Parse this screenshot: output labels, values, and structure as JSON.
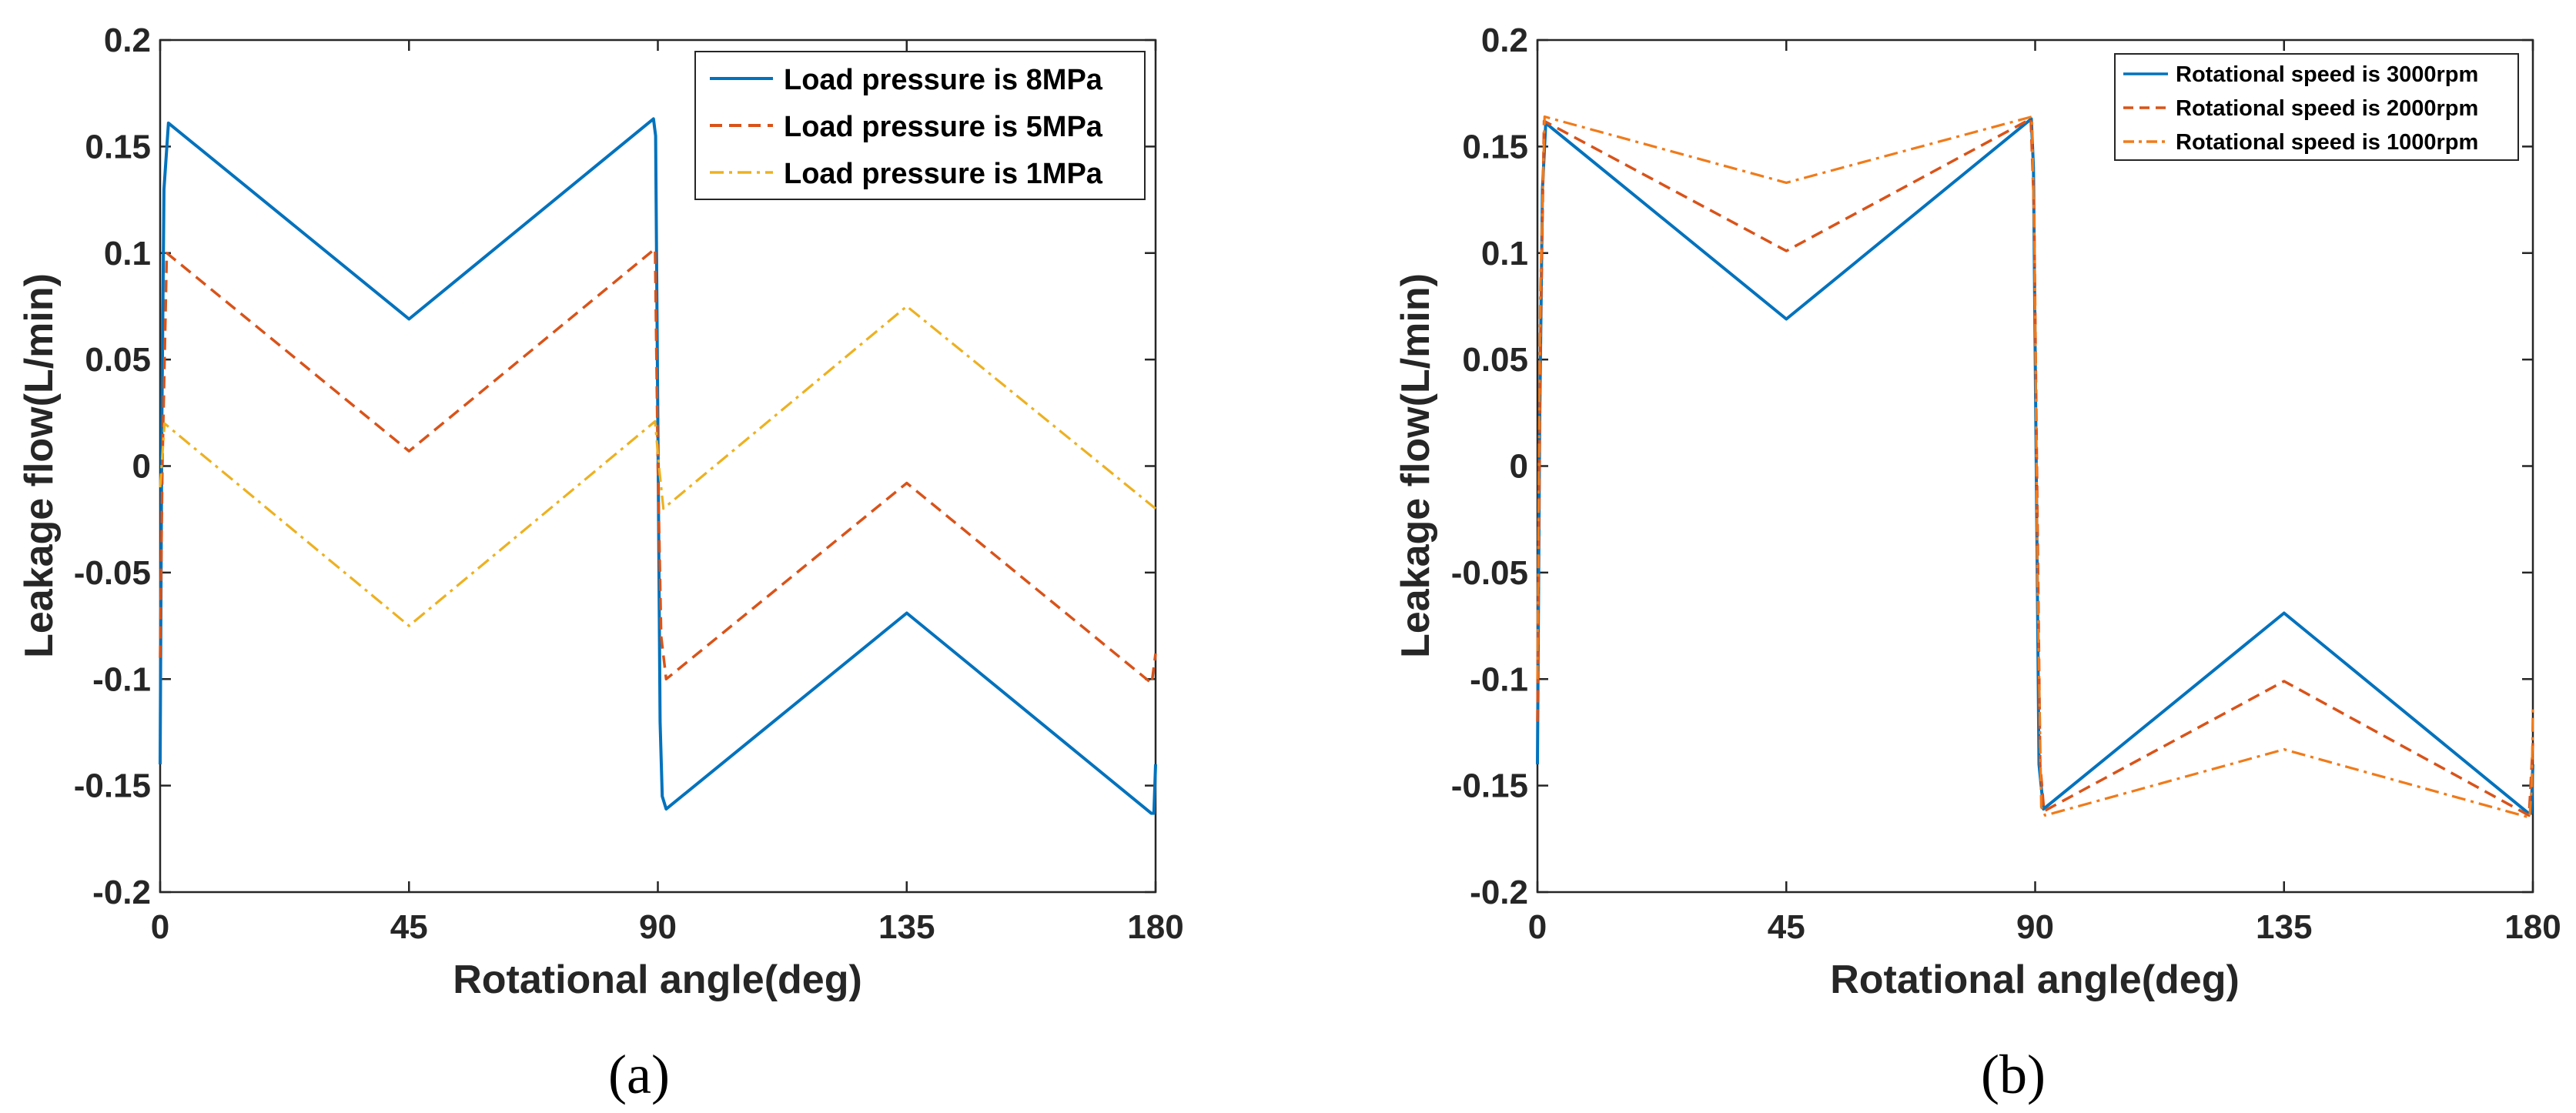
{
  "chart_data": [
    {
      "type": "line",
      "panel_label": "(a)",
      "xlabel": "Rotational angle(deg)",
      "ylabel": "Leakage flow(L/min)",
      "xlim": [
        0,
        180
      ],
      "ylim": [
        -0.2,
        0.2
      ],
      "xticks": [
        0,
        45,
        90,
        135,
        180
      ],
      "yticks": [
        0.2,
        0.15,
        0.1,
        0.05,
        0,
        -0.05,
        -0.1,
        -0.15,
        -0.2
      ],
      "ytick_labels": [
        "0.2",
        "0.15",
        "0.1",
        "0.05",
        "0",
        "-0.05",
        "-0.1",
        "-0.15",
        "-0.2"
      ],
      "legend_position": "top-right",
      "series": [
        {
          "name": "Load pressure is 8MPa",
          "color": "#0072BD",
          "dash": "solid",
          "points": [
            [
              0,
              -0.14
            ],
            [
              0.3,
              0.02
            ],
            [
              0.7,
              0.13
            ],
            [
              1.5,
              0.161
            ],
            [
              45,
              0.069
            ],
            [
              89.2,
              0.163
            ],
            [
              89.6,
              0.155
            ],
            [
              90,
              0.02
            ],
            [
              90.4,
              -0.12
            ],
            [
              90.8,
              -0.155
            ],
            [
              91.5,
              -0.161
            ],
            [
              135,
              -0.069
            ],
            [
              179.2,
              -0.163
            ],
            [
              179.7,
              -0.163
            ],
            [
              180,
              -0.14
            ]
          ]
        },
        {
          "name": "Load pressure is 5MPa",
          "color": "#D95319",
          "dash": "dashed",
          "points": [
            [
              0,
              -0.09
            ],
            [
              0.4,
              0.0
            ],
            [
              1.2,
              0.1
            ],
            [
              45,
              0.007
            ],
            [
              89.5,
              0.102
            ],
            [
              90,
              0.0
            ],
            [
              90.6,
              -0.08
            ],
            [
              91.5,
              -0.1
            ],
            [
              135,
              -0.008
            ],
            [
              179.3,
              -0.102
            ],
            [
              180,
              -0.088
            ]
          ]
        },
        {
          "name": "Load pressure is 1MPa",
          "color": "#EDB120",
          "dash": "dashdot",
          "points": [
            [
              0,
              -0.01
            ],
            [
              0.8,
              0.02
            ],
            [
              45,
              -0.075
            ],
            [
              89.5,
              0.021
            ],
            [
              90.2,
              0.0
            ],
            [
              91,
              -0.02
            ],
            [
              135,
              0.075
            ],
            [
              180,
              -0.02
            ]
          ]
        }
      ]
    },
    {
      "type": "line",
      "panel_label": "(b)",
      "xlabel": "Rotational angle(deg)",
      "ylabel": "Leakage flow(L/min)",
      "xlim": [
        0,
        180
      ],
      "ylim": [
        -0.2,
        0.2
      ],
      "xticks": [
        0,
        45,
        90,
        135,
        180
      ],
      "yticks": [
        0.2,
        0.15,
        0.1,
        0.05,
        0,
        -0.05,
        -0.1,
        -0.15,
        -0.2
      ],
      "ytick_labels": [
        "0.2",
        "0.15",
        "0.1",
        "0.05",
        "0",
        "-0.05",
        "-0.1",
        "-0.15",
        "-0.2"
      ],
      "legend_position": "top-right",
      "series": [
        {
          "name": "Rotational speed is 3000rpm",
          "color": "#0072BD",
          "dash": "solid",
          "points": [
            [
              0,
              -0.14
            ],
            [
              0.4,
              0.02
            ],
            [
              0.9,
              0.13
            ],
            [
              1.5,
              0.161
            ],
            [
              45,
              0.069
            ],
            [
              89.3,
              0.163
            ],
            [
              89.7,
              0.14
            ],
            [
              90.2,
              0.0
            ],
            [
              90.7,
              -0.14
            ],
            [
              91.5,
              -0.161
            ],
            [
              135,
              -0.069
            ],
            [
              179.2,
              -0.163
            ],
            [
              179.7,
              -0.163
            ],
            [
              180,
              -0.14
            ]
          ]
        },
        {
          "name": "Rotational speed is 2000rpm",
          "color": "#D95319",
          "dash": "dashed",
          "points": [
            [
              0,
              -0.12
            ],
            [
              0.5,
              0.05
            ],
            [
              1.2,
              0.162
            ],
            [
              45,
              0.101
            ],
            [
              89.2,
              0.163
            ],
            [
              89.8,
              0.12
            ],
            [
              90.3,
              0.0
            ],
            [
              90.9,
              -0.14
            ],
            [
              91.6,
              -0.162
            ],
            [
              135,
              -0.101
            ],
            [
              179.3,
              -0.164
            ],
            [
              180,
              -0.13
            ]
          ]
        },
        {
          "name": "Rotational speed is 1000rpm",
          "color": "#F07B1A",
          "dash": "dashdot",
          "points": [
            [
              0,
              -0.1
            ],
            [
              0.5,
              0.08
            ],
            [
              1.3,
              0.164
            ],
            [
              45,
              0.133
            ],
            [
              89.4,
              0.164
            ],
            [
              89.9,
              0.1
            ],
            [
              90.4,
              -0.05
            ],
            [
              91.1,
              -0.16
            ],
            [
              91.8,
              -0.164
            ],
            [
              135,
              -0.133
            ],
            [
              179.4,
              -0.165
            ],
            [
              179.8,
              -0.15
            ],
            [
              180,
              -0.113
            ]
          ]
        }
      ]
    }
  ]
}
